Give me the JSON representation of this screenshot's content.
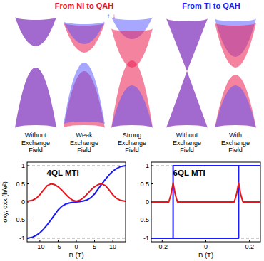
{
  "diagram": {
    "left_title": "From NI to QAH",
    "right_title": "From TI to QAH",
    "spin_symbols": [
      "↑",
      "↓"
    ],
    "left_panels": [
      "Without Exchange Field",
      "Weak Exchange Field",
      "Strong Exchange Field"
    ],
    "right_panels": [
      "Without Exchange Field",
      "With Exchange Field"
    ]
  },
  "chart_data": [
    {
      "type": "line",
      "title": "4QL MTI",
      "x_label": "B (T)",
      "y_label": "σxy, σxx (h/e²)",
      "xlim": [
        -13.5,
        13.5
      ],
      "xticks": [
        -10,
        -5,
        0,
        5,
        10
      ],
      "ylim": [
        -1.1,
        1.1
      ],
      "yticks": [
        -1,
        -0.5,
        0,
        0.5,
        1
      ],
      "series": [
        {
          "color": "#1a1aff",
          "x": [
            -13.5,
            -12,
            -11,
            -10,
            -9,
            -8,
            -7,
            -6,
            -5,
            -4,
            -3,
            -2,
            -1,
            0,
            1,
            2,
            3,
            4,
            5,
            6,
            7,
            8,
            9,
            10,
            11,
            12,
            13.5
          ],
          "values": [
            -1,
            -0.97,
            -0.92,
            -0.85,
            -0.75,
            -0.63,
            -0.5,
            -0.36,
            -0.22,
            -0.12,
            -0.06,
            -0.03,
            -0.01,
            0,
            0.01,
            0.03,
            0.06,
            0.12,
            0.22,
            0.36,
            0.5,
            0.63,
            0.75,
            0.85,
            0.92,
            0.97,
            1
          ]
        },
        {
          "color": "#e8141e",
          "x": [
            -13.5,
            -12,
            -11,
            -10,
            -9,
            -8,
            -7,
            -6,
            -5,
            -4,
            -3,
            -2,
            -1,
            0,
            1,
            2,
            3,
            4,
            5,
            6,
            7,
            8,
            9,
            10,
            11,
            12,
            13.5
          ],
          "values": [
            0.02,
            0.05,
            0.1,
            0.2,
            0.33,
            0.45,
            0.5,
            0.48,
            0.42,
            0.33,
            0.22,
            0.12,
            0.05,
            0.02,
            0.05,
            0.12,
            0.22,
            0.33,
            0.42,
            0.48,
            0.5,
            0.45,
            0.33,
            0.2,
            0.1,
            0.05,
            0.02
          ]
        }
      ]
    },
    {
      "type": "line",
      "title": "6QL MTI",
      "x_label": "B (T)",
      "xlim": [
        -0.25,
        0.25
      ],
      "xticks": [
        -0.2,
        0,
        0.2
      ],
      "ylim": [
        -1.1,
        1.1
      ],
      "yticks": [
        -1,
        -0.5,
        0,
        0.5,
        1
      ],
      "series": [
        {
          "color": "#1a1aff",
          "x": [
            -0.25,
            0,
            0.15,
            0.15,
            0.25,
            0,
            -0.15,
            -0.15,
            -0.25
          ],
          "values": [
            -1,
            -1,
            -1,
            1,
            1,
            1,
            1,
            -1,
            -1
          ]
        },
        {
          "color": "#e8141e",
          "x": [
            -0.25,
            -0.17,
            -0.16,
            -0.15,
            -0.14,
            -0.13,
            0.13,
            0.14,
            0.15,
            0.16,
            0.17,
            0.25
          ],
          "values": [
            0,
            0,
            0.2,
            0.52,
            0.2,
            0,
            0,
            0.2,
            0.52,
            0.2,
            0,
            0
          ]
        }
      ]
    }
  ]
}
